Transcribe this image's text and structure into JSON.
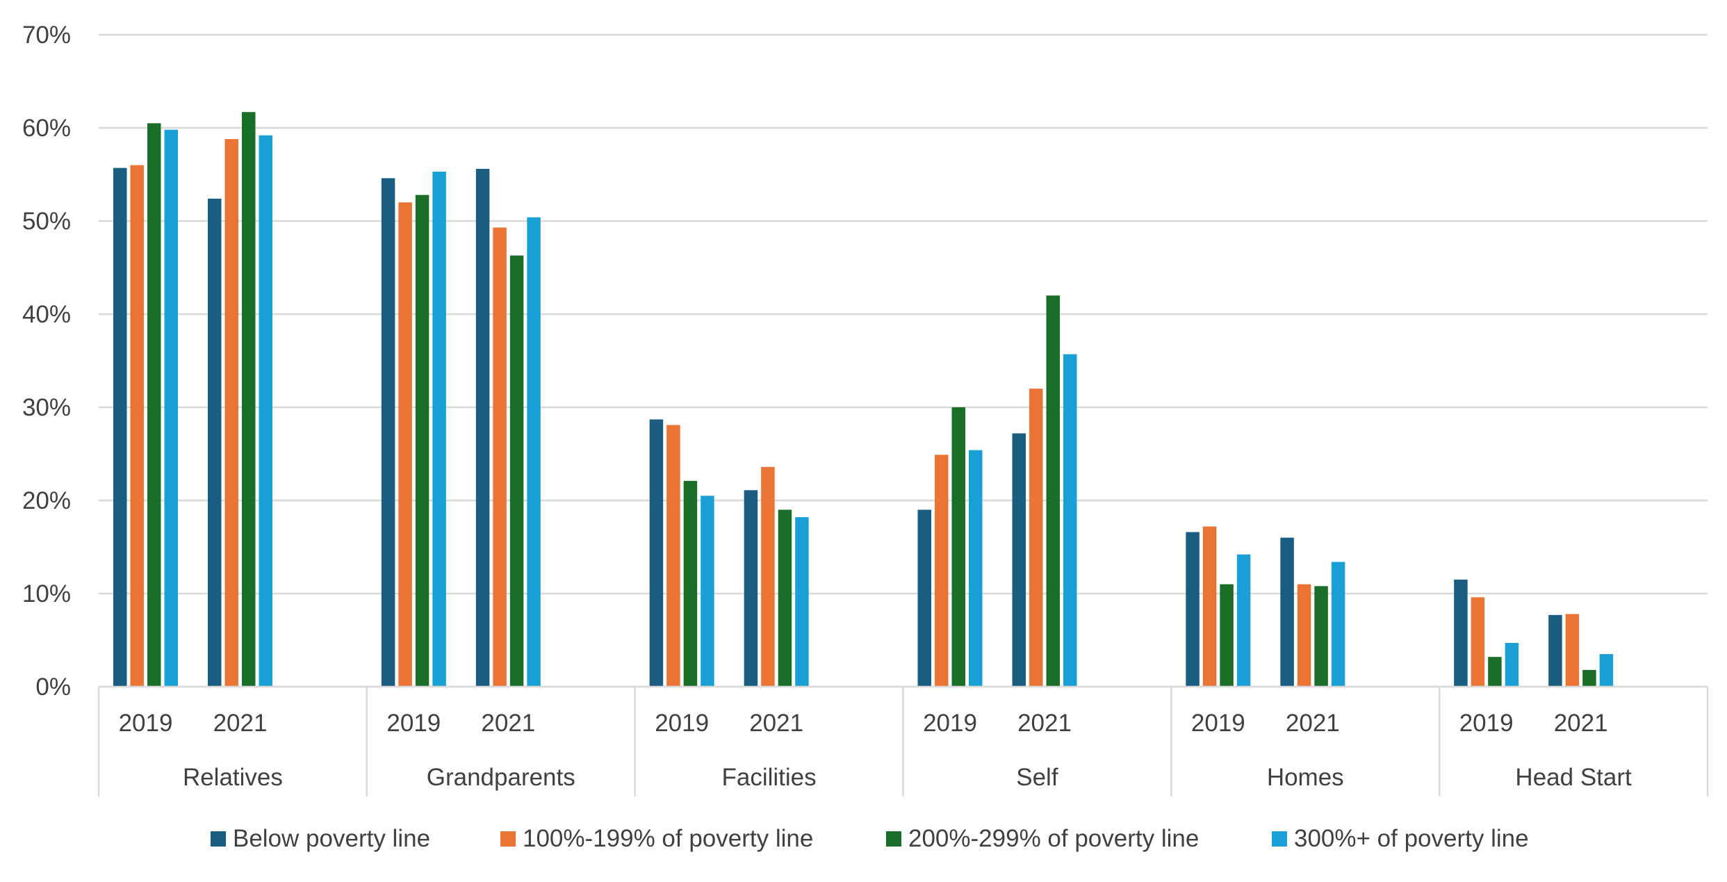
{
  "chart_data": {
    "type": "bar",
    "title": "",
    "xlabel": "",
    "ylabel": "",
    "ylim": [
      0,
      70
    ],
    "yticks": [
      0,
      10,
      20,
      30,
      40,
      50,
      60,
      70
    ],
    "ytick_labels": [
      "0%",
      "10%",
      "20%",
      "30%",
      "40%",
      "50%",
      "60%",
      "70%"
    ],
    "grid": true,
    "legend_position": "bottom",
    "groups": [
      {
        "name": "Relatives",
        "years": [
          "2019",
          "2021"
        ]
      },
      {
        "name": "Grandparents",
        "years": [
          "2019",
          "2021"
        ]
      },
      {
        "name": "Facilities",
        "years": [
          "2019",
          "2021"
        ]
      },
      {
        "name": "Self",
        "years": [
          "2019",
          "2021"
        ]
      },
      {
        "name": "Homes",
        "years": [
          "2019",
          "2021"
        ]
      },
      {
        "name": "Head Start",
        "years": [
          "2019",
          "2021"
        ]
      }
    ],
    "series": [
      {
        "name": "Below poverty line",
        "color": "#1a5d80",
        "values": [
          [
            55.7,
            52.4
          ],
          [
            54.6,
            55.6
          ],
          [
            28.7,
            21.1
          ],
          [
            19.0,
            27.2
          ],
          [
            16.6,
            16.0
          ],
          [
            11.5,
            7.7
          ]
        ]
      },
      {
        "name": "100%-199% of poverty line",
        "color": "#ea7434",
        "values": [
          [
            56.0,
            58.8
          ],
          [
            52.0,
            49.3
          ],
          [
            28.1,
            23.6
          ],
          [
            24.9,
            32.0
          ],
          [
            17.2,
            11.0
          ],
          [
            9.6,
            7.8
          ]
        ]
      },
      {
        "name": "200%-299% of poverty line",
        "color": "#1b6e28",
        "values": [
          [
            60.5,
            61.7
          ],
          [
            52.8,
            46.3
          ],
          [
            22.1,
            19.0
          ],
          [
            30.0,
            42.0
          ],
          [
            11.0,
            10.8
          ],
          [
            3.2,
            1.8
          ]
        ]
      },
      {
        "name": "300%+ of poverty line",
        "color": "#1aa0d6",
        "values": [
          [
            59.8,
            59.2
          ],
          [
            55.3,
            50.4
          ],
          [
            20.5,
            18.2
          ],
          [
            25.4,
            35.7
          ],
          [
            14.2,
            13.4
          ],
          [
            4.7,
            3.5
          ]
        ]
      }
    ]
  }
}
